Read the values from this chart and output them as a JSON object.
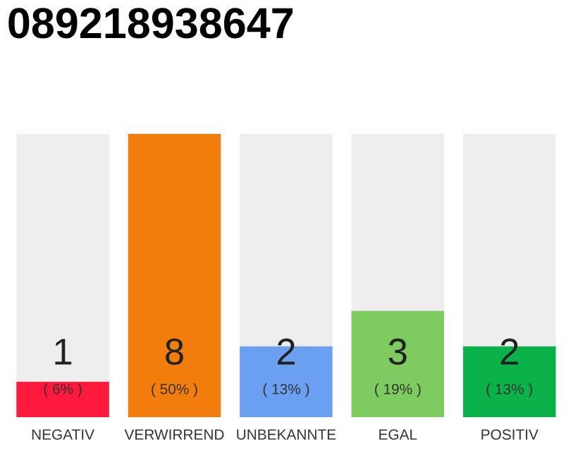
{
  "chart_data": {
    "type": "bar",
    "title": "089218938647",
    "categories": [
      "NEGATIV",
      "VERWIRREND",
      "UNBEKANNTE",
      "EGAL",
      "POSITIV"
    ],
    "values": [
      1,
      8,
      2,
      3,
      2
    ],
    "colors": [
      "#ff1a3d",
      "#f27d0c",
      "#6aa0ef",
      "#7ecb5f",
      "#0bb24a"
    ],
    "data_labels": true,
    "annotations": [
      "( 6% )",
      "( 50% )",
      "( 13% )",
      "( 19% )",
      "( 13% )"
    ],
    "grid": false,
    "legend": false
  }
}
